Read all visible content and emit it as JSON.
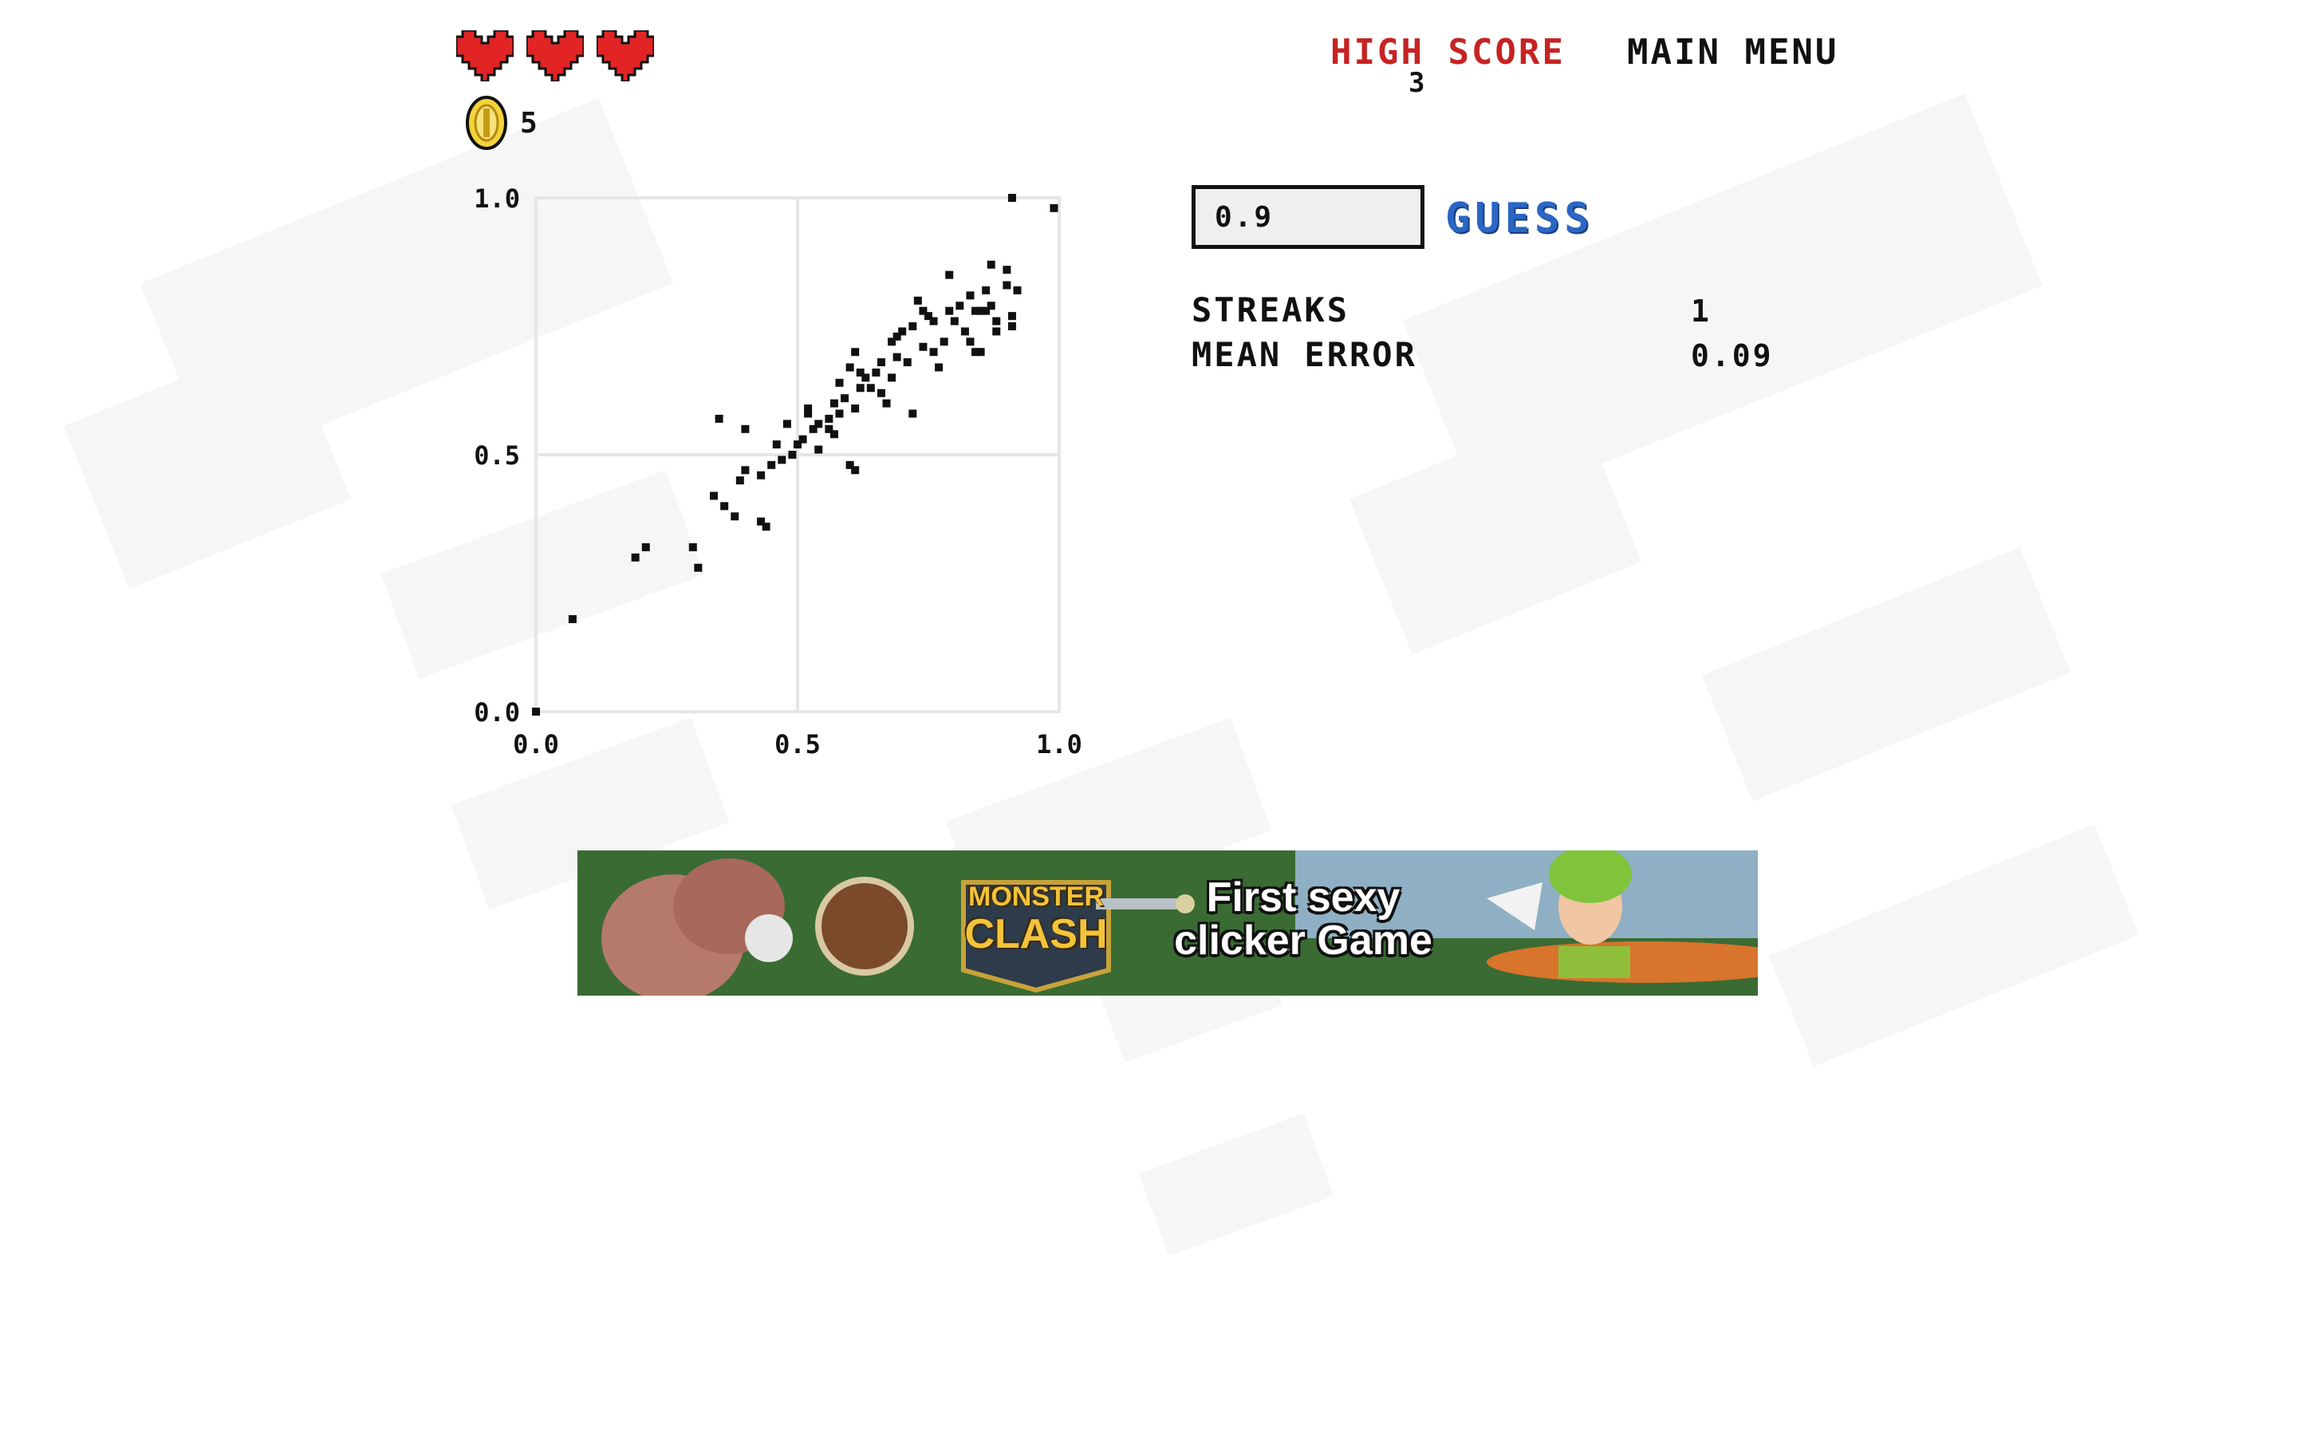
{
  "lives": {
    "hearts": 3,
    "heart_color": "#e22424"
  },
  "coins": {
    "icon": "coin-icon",
    "count": "5"
  },
  "header": {
    "high_score_label": "HIGH SCORE",
    "high_score_value": "3",
    "main_menu_label": "MAIN MENU",
    "high_score_color": "#c62323"
  },
  "guess": {
    "input_value": "0.9",
    "button_label": "GUESS",
    "button_color": "#2a66c4"
  },
  "stats": {
    "streaks_label": "STREAKS",
    "streaks_value": "1",
    "mean_error_label": "MEAN ERROR",
    "mean_error_value": "0.09"
  },
  "ad": {
    "logo_line1": "MONSTER",
    "logo_line2": "CLASH",
    "headline_line1": "First sexy",
    "headline_line2": "clicker Game"
  },
  "chart_data": {
    "type": "scatter",
    "xlim": [
      0,
      1
    ],
    "ylim": [
      0,
      1
    ],
    "x_ticks": [
      "0.0",
      "0.5",
      "1.0"
    ],
    "y_ticks": [
      "0.0",
      "0.5",
      "1.0"
    ],
    "grid": true,
    "point_color": "#111111",
    "points": [
      [
        0.91,
        1.0
      ],
      [
        0.99,
        0.98
      ],
      [
        0.0,
        0.0
      ],
      [
        0.07,
        0.18
      ],
      [
        0.19,
        0.3
      ],
      [
        0.21,
        0.32
      ],
      [
        0.3,
        0.32
      ],
      [
        0.31,
        0.28
      ],
      [
        0.34,
        0.42
      ],
      [
        0.35,
        0.57
      ],
      [
        0.36,
        0.4
      ],
      [
        0.38,
        0.38
      ],
      [
        0.39,
        0.45
      ],
      [
        0.4,
        0.47
      ],
      [
        0.4,
        0.55
      ],
      [
        0.43,
        0.37
      ],
      [
        0.44,
        0.36
      ],
      [
        0.43,
        0.46
      ],
      [
        0.45,
        0.48
      ],
      [
        0.46,
        0.52
      ],
      [
        0.49,
        0.5
      ],
      [
        0.5,
        0.52
      ],
      [
        0.51,
        0.53
      ],
      [
        0.52,
        0.58
      ],
      [
        0.53,
        0.55
      ],
      [
        0.54,
        0.56
      ],
      [
        0.54,
        0.51
      ],
      [
        0.56,
        0.57
      ],
      [
        0.57,
        0.54
      ],
      [
        0.57,
        0.6
      ],
      [
        0.58,
        0.58
      ],
      [
        0.6,
        0.48
      ],
      [
        0.61,
        0.47
      ],
      [
        0.61,
        0.59
      ],
      [
        0.58,
        0.64
      ],
      [
        0.6,
        0.67
      ],
      [
        0.61,
        0.7
      ],
      [
        0.62,
        0.66
      ],
      [
        0.63,
        0.65
      ],
      [
        0.64,
        0.63
      ],
      [
        0.65,
        0.66
      ],
      [
        0.66,
        0.68
      ],
      [
        0.67,
        0.6
      ],
      [
        0.68,
        0.65
      ],
      [
        0.68,
        0.72
      ],
      [
        0.69,
        0.69
      ],
      [
        0.7,
        0.74
      ],
      [
        0.71,
        0.68
      ],
      [
        0.72,
        0.58
      ],
      [
        0.72,
        0.75
      ],
      [
        0.73,
        0.8
      ],
      [
        0.74,
        0.71
      ],
      [
        0.75,
        0.77
      ],
      [
        0.76,
        0.76
      ],
      [
        0.76,
        0.7
      ],
      [
        0.77,
        0.67
      ],
      [
        0.78,
        0.72
      ],
      [
        0.79,
        0.78
      ],
      [
        0.79,
        0.85
      ],
      [
        0.8,
        0.76
      ],
      [
        0.81,
        0.79
      ],
      [
        0.82,
        0.74
      ],
      [
        0.83,
        0.81
      ],
      [
        0.83,
        0.72
      ],
      [
        0.84,
        0.78
      ],
      [
        0.84,
        0.7
      ],
      [
        0.85,
        0.7
      ],
      [
        0.86,
        0.82
      ],
      [
        0.86,
        0.78
      ],
      [
        0.87,
        0.79
      ],
      [
        0.88,
        0.76
      ],
      [
        0.69,
        0.73
      ],
      [
        0.85,
        0.78
      ],
      [
        0.87,
        0.87
      ],
      [
        0.88,
        0.74
      ],
      [
        0.9,
        0.83
      ],
      [
        0.91,
        0.77
      ],
      [
        0.9,
        0.86
      ],
      [
        0.92,
        0.82
      ],
      [
        0.91,
        0.75
      ],
      [
        0.66,
        0.62
      ],
      [
        0.62,
        0.63
      ],
      [
        0.59,
        0.61
      ],
      [
        0.56,
        0.55
      ],
      [
        0.52,
        0.59
      ],
      [
        0.47,
        0.49
      ],
      [
        0.48,
        0.56
      ],
      [
        0.74,
        0.78
      ]
    ]
  }
}
